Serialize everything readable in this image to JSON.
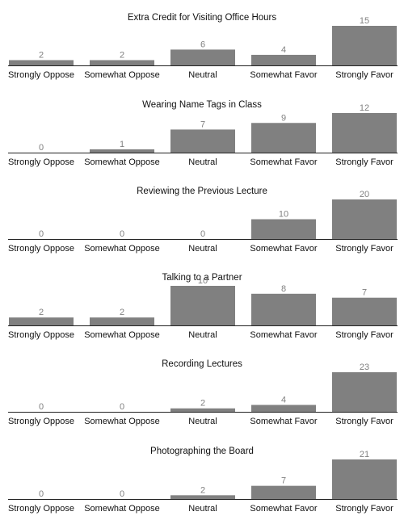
{
  "chart_data": [
    {
      "type": "bar",
      "title": "Extra Credit for Visiting Office Hours",
      "categories": [
        "Strongly Oppose",
        "Somewhat Oppose",
        "Neutral",
        "Somewhat Favor",
        "Strongly Favor"
      ],
      "values": [
        2,
        2,
        6,
        4,
        15
      ],
      "ylim": [
        0,
        15
      ],
      "grid": false,
      "bar_color": "#808080",
      "label_color": "#808080"
    },
    {
      "type": "bar",
      "title": "Wearing Name Tags in Class",
      "categories": [
        "Strongly Oppose",
        "Somewhat Oppose",
        "Neutral",
        "Somewhat Favor",
        "Strongly Favor"
      ],
      "values": [
        0,
        1,
        7,
        9,
        12
      ],
      "ylim": [
        0,
        12
      ],
      "grid": false,
      "bar_color": "#808080",
      "label_color": "#808080"
    },
    {
      "type": "bar",
      "title": "Reviewing the Previous Lecture",
      "categories": [
        "Strongly Oppose",
        "Somewhat Oppose",
        "Neutral",
        "Somewhat Favor",
        "Strongly Favor"
      ],
      "values": [
        0,
        0,
        0,
        10,
        20
      ],
      "ylim": [
        0,
        20
      ],
      "grid": false,
      "bar_color": "#808080",
      "label_color": "#808080"
    },
    {
      "type": "bar",
      "title": "Talking to a Partner",
      "categories": [
        "Strongly Oppose",
        "Somewhat Oppose",
        "Neutral",
        "Somewhat Favor",
        "Strongly Favor"
      ],
      "values": [
        2,
        2,
        10,
        8,
        7
      ],
      "ylim": [
        0,
        10
      ],
      "grid": false,
      "bar_color": "#808080",
      "label_color": "#808080"
    },
    {
      "type": "bar",
      "title": "Recording Lectures",
      "categories": [
        "Strongly Oppose",
        "Somewhat Oppose",
        "Neutral",
        "Somewhat Favor",
        "Strongly Favor"
      ],
      "values": [
        0,
        0,
        2,
        4,
        23
      ],
      "ylim": [
        0,
        23
      ],
      "grid": false,
      "bar_color": "#808080",
      "label_color": "#808080"
    },
    {
      "type": "bar",
      "title": "Photographing the Board",
      "categories": [
        "Strongly Oppose",
        "Somewhat Oppose",
        "Neutral",
        "Somewhat Favor",
        "Strongly Favor"
      ],
      "values": [
        0,
        0,
        2,
        7,
        21
      ],
      "ylim": [
        0,
        21
      ],
      "grid": false,
      "bar_color": "#808080",
      "label_color": "#808080"
    }
  ]
}
